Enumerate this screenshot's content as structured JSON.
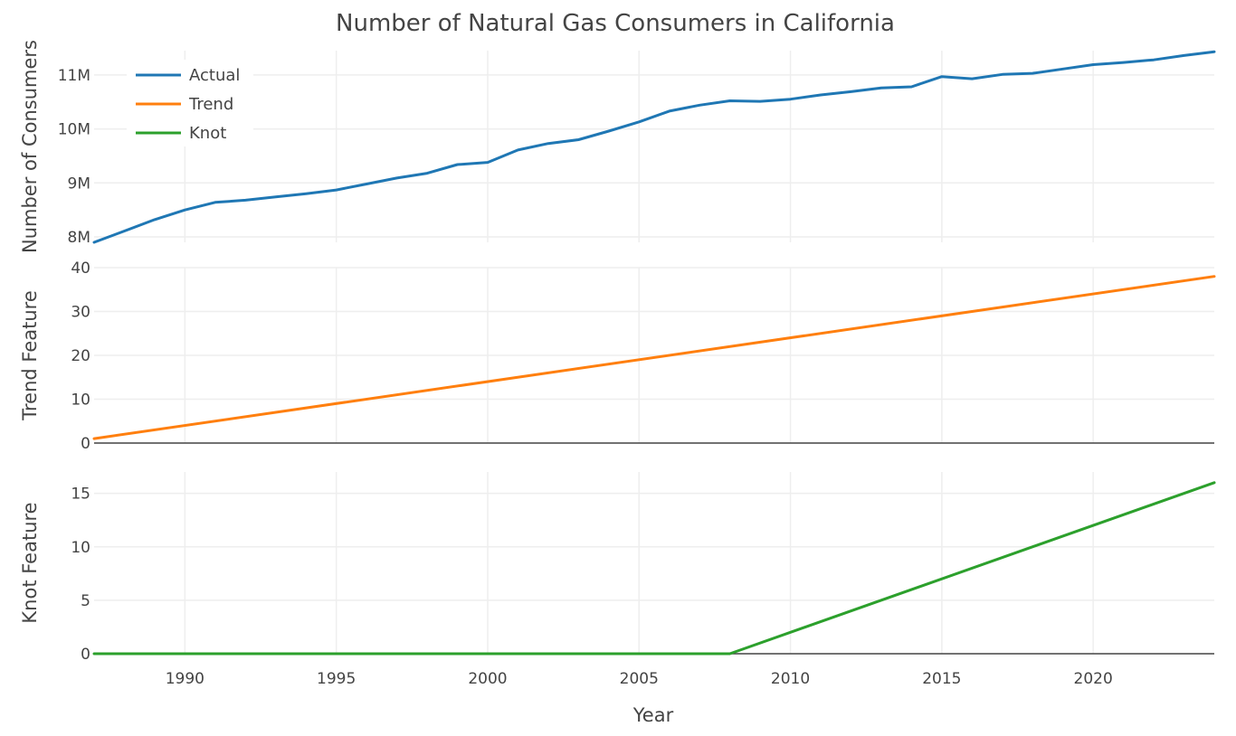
{
  "chart_data": {
    "type": "line",
    "title": "Number of Natural Gas Consumers in California",
    "xlabel": "Year",
    "x_ticks": [
      1990,
      1995,
      2000,
      2005,
      2010,
      2015,
      2020
    ],
    "x_range": [
      1987,
      2024
    ],
    "legend": {
      "placement": "top-left",
      "entries": [
        "Actual",
        "Trend",
        "Knot"
      ]
    },
    "colors": {
      "actual": "#1f77b4",
      "trend": "#ff7f0e",
      "knot": "#2ca02c"
    },
    "panels": [
      {
        "id": "actual",
        "ylabel": "Number of Consumers",
        "ylim": [
          7.9,
          11.45
        ],
        "y_ticks": [
          8,
          9,
          10,
          11
        ],
        "y_tick_labels": [
          "8M",
          "9M",
          "10M",
          "11M"
        ],
        "series": {
          "name": "Actual",
          "color": "#1f77b4",
          "x": [
            1987,
            1988,
            1989,
            1990,
            1991,
            1992,
            1993,
            1994,
            1995,
            1996,
            1997,
            1998,
            1999,
            2000,
            2001,
            2002,
            2003,
            2004,
            2005,
            2006,
            2007,
            2008,
            2009,
            2010,
            2011,
            2012,
            2013,
            2014,
            2015,
            2016,
            2017,
            2018,
            2019,
            2020,
            2021,
            2022,
            2023,
            2024
          ],
          "values": [
            7.9,
            8.11,
            8.32,
            8.5,
            8.64,
            8.68,
            8.74,
            8.8,
            8.87,
            8.98,
            9.09,
            9.18,
            9.34,
            9.38,
            9.61,
            9.73,
            9.8,
            9.96,
            10.13,
            10.33,
            10.44,
            10.52,
            10.51,
            10.55,
            10.63,
            10.69,
            10.76,
            10.78,
            10.97,
            10.93,
            11.01,
            11.03,
            11.11,
            11.19,
            11.23,
            11.28,
            11.36,
            11.43
          ]
        }
      },
      {
        "id": "trend",
        "ylabel": "Trend Feature",
        "ylim": [
          0,
          40
        ],
        "y_ticks": [
          0,
          10,
          20,
          30,
          40
        ],
        "y_tick_labels": [
          "0",
          "10",
          "20",
          "30",
          "40"
        ],
        "series": {
          "name": "Trend",
          "color": "#ff7f0e",
          "x": [
            1987,
            2024
          ],
          "values": [
            1,
            38
          ]
        }
      },
      {
        "id": "knot",
        "ylabel": "Knot Feature",
        "ylim": [
          0,
          17
        ],
        "y_ticks": [
          0,
          5,
          10,
          15
        ],
        "y_tick_labels": [
          "0",
          "5",
          "10",
          "15"
        ],
        "series": {
          "name": "Knot",
          "color": "#2ca02c",
          "x": [
            1987,
            2008,
            2024
          ],
          "values": [
            0,
            0,
            16
          ]
        }
      }
    ]
  }
}
